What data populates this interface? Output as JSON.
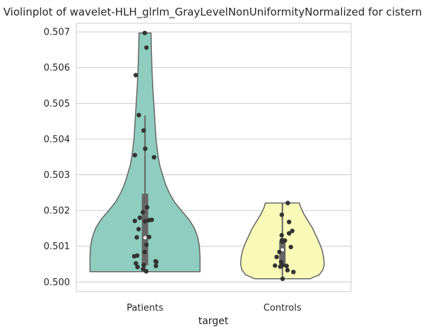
{
  "chart_data": {
    "type": "violin",
    "title": "Violinplot of wavelet-HLH_glrlm_GrayLevelNonUniformityNormalized for cistern",
    "xlabel": "target",
    "ylabel": "",
    "ylim": [
      0.49973,
      0.50724
    ],
    "yticks": [
      0.5,
      0.501,
      0.502,
      0.503,
      0.504,
      0.505,
      0.506,
      0.507
    ],
    "ytick_labels": [
      "0.500",
      "0.501",
      "0.502",
      "0.503",
      "0.504",
      "0.505",
      "0.506",
      "0.507"
    ],
    "grid": true,
    "categories": [
      "Patients",
      "Controls"
    ],
    "colors": [
      "#8ecdc0",
      "#fafab8"
    ],
    "point_color": "#333333",
    "violins": [
      {
        "category": "Patients",
        "min": 0.50029,
        "max": 0.50697,
        "q1": 0.50047,
        "median": 0.50124,
        "q3": 0.50247,
        "whisker_low": 0.50029,
        "whisker_high": 0.50466,
        "profile": [
          [
            0.50029,
            1.0
          ],
          [
            0.5005,
            1.0
          ],
          [
            0.5007,
            1.0
          ],
          [
            0.501,
            0.99
          ],
          [
            0.50125,
            0.96
          ],
          [
            0.5015,
            0.9
          ],
          [
            0.50175,
            0.8
          ],
          [
            0.502,
            0.66
          ],
          [
            0.50225,
            0.53
          ],
          [
            0.5025,
            0.44
          ],
          [
            0.50275,
            0.37
          ],
          [
            0.503,
            0.32
          ],
          [
            0.50325,
            0.27
          ],
          [
            0.5035,
            0.24
          ],
          [
            0.50375,
            0.22
          ],
          [
            0.504,
            0.2
          ],
          [
            0.5045,
            0.18
          ],
          [
            0.505,
            0.16
          ],
          [
            0.5055,
            0.14
          ],
          [
            0.506,
            0.125
          ],
          [
            0.5065,
            0.115
          ],
          [
            0.50697,
            0.11
          ]
        ],
        "points": [
          0.50697,
          0.50656,
          0.50579,
          0.50467,
          0.50424,
          0.50373,
          0.50355,
          0.50349,
          0.50209,
          0.50195,
          0.5018,
          0.50174,
          0.50173,
          0.50171,
          0.5017,
          0.50148,
          0.50126,
          0.50125,
          0.50104,
          0.50084,
          0.50074,
          0.50072,
          0.50058,
          0.50056,
          0.50052,
          0.50048,
          0.50045,
          0.50042,
          0.50036,
          0.5003
        ]
      },
      {
        "category": "Controls",
        "min": 0.50009,
        "max": 0.50221,
        "q1": 0.50045,
        "median": 0.5009,
        "q3": 0.50115,
        "whisker_low": 0.50009,
        "whisker_high": 0.50221,
        "profile": [
          [
            0.50009,
            0.5
          ],
          [
            0.5002,
            0.67
          ],
          [
            0.50035,
            0.74
          ],
          [
            0.5005,
            0.76
          ],
          [
            0.5007,
            0.75
          ],
          [
            0.5009,
            0.72
          ],
          [
            0.5011,
            0.67
          ],
          [
            0.5013,
            0.61
          ],
          [
            0.5015,
            0.55
          ],
          [
            0.5017,
            0.47
          ],
          [
            0.5019,
            0.39
          ],
          [
            0.5021,
            0.33
          ],
          [
            0.50221,
            0.31
          ]
        ],
        "points": [
          0.50221,
          0.50188,
          0.50168,
          0.50143,
          0.50136,
          0.50131,
          0.50117,
          0.50116,
          0.50113,
          0.50098,
          0.50084,
          0.5007,
          0.50056,
          0.50047,
          0.50046,
          0.50045,
          0.50043,
          0.50033,
          0.50028,
          0.50009
        ]
      }
    ]
  }
}
